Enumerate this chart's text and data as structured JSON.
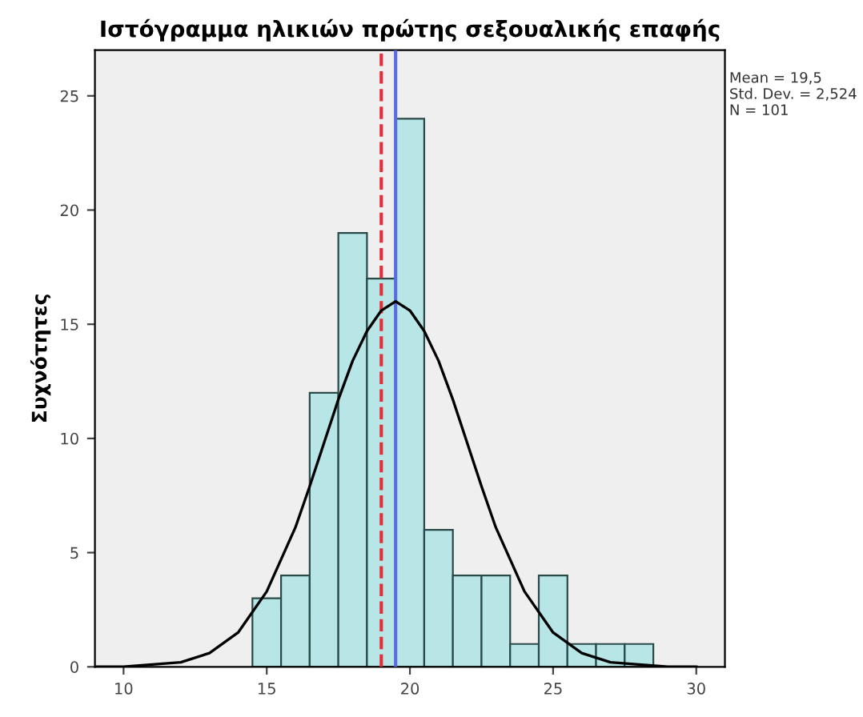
{
  "chart_data": {
    "type": "histogram",
    "title": "Ιστόγραμμα ηλικιών πρώτης σεξουαλικής επαφής",
    "ylabel": "Συχνότητες",
    "bins": [
      14.5,
      15.5,
      16.5,
      17.5,
      18.5,
      19.5,
      20.5,
      21.5,
      22.5,
      23.5,
      24.5,
      25.5,
      26.5,
      27.5,
      28.5
    ],
    "values": [
      3,
      4,
      12,
      19,
      17,
      24,
      6,
      4,
      4,
      1,
      4,
      1,
      1,
      1
    ],
    "color": "#b8e6e6",
    "series": [
      {
        "type": "line",
        "color": "#000000",
        "x": [
          9,
          10,
          11,
          12,
          13,
          14,
          15,
          16,
          16.5,
          17,
          17.5,
          18,
          18.5,
          19,
          19.5,
          20,
          20.5,
          21,
          21.5,
          22,
          22.5,
          23,
          24,
          25,
          26,
          27,
          28,
          29,
          30
        ],
        "values": [
          0,
          0,
          0.1,
          0.2,
          0.6,
          1.5,
          3.3,
          6.1,
          7.9,
          9.8,
          11.7,
          13.4,
          14.7,
          15.6,
          16,
          15.6,
          14.7,
          13.4,
          11.7,
          9.8,
          7.9,
          6.1,
          3.3,
          1.5,
          0.6,
          0.2,
          0.1,
          0,
          0
        ]
      }
    ],
    "ref_lines": [
      {
        "axis": "x",
        "value": 19,
        "color": "#e0303c",
        "line_style": "dashed"
      },
      {
        "axis": "x",
        "value": 19.5,
        "color": "#5a6ee0",
        "line_style": "solid"
      }
    ],
    "annotations": [
      "Mean = 19,5\nStd. Dev. = 2,524\nN = 101"
    ],
    "xlim": [
      9,
      31
    ],
    "xticks": [
      10,
      15,
      20,
      25,
      30
    ],
    "ylim": [
      0,
      27
    ],
    "yticks": [
      0,
      5,
      10,
      15,
      20,
      25
    ],
    "grid": false,
    "legend": false
  }
}
